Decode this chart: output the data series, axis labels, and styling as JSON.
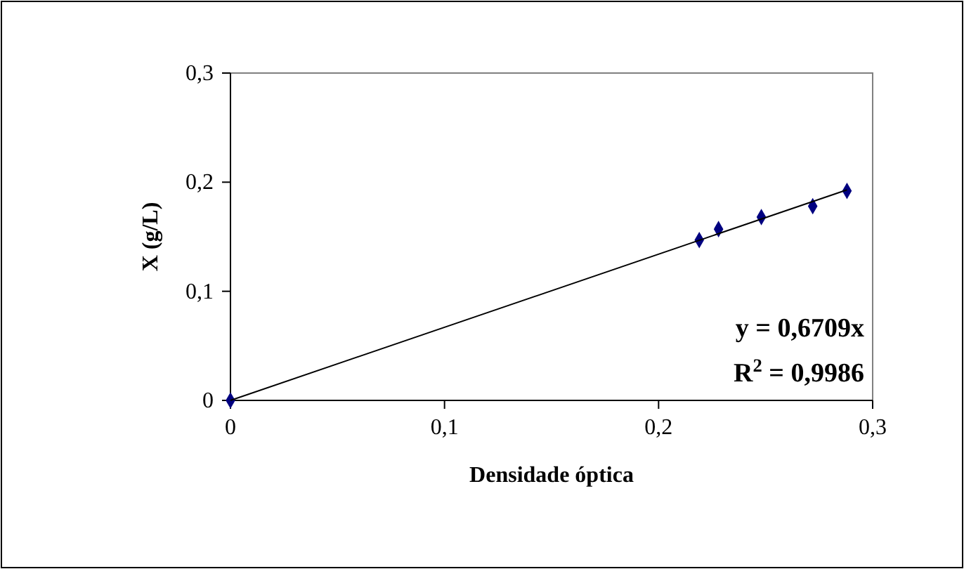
{
  "chart_data": {
    "type": "scatter",
    "xlabel": "Densidade óptica",
    "ylabel": "X (g/L)",
    "xlim": [
      0,
      0.3
    ],
    "ylim": [
      0,
      0.3
    ],
    "xticks": [
      {
        "value": 0,
        "label": "0"
      },
      {
        "value": 0.1,
        "label": "0,1"
      },
      {
        "value": 0.2,
        "label": "0,2"
      },
      {
        "value": 0.3,
        "label": "0,3"
      }
    ],
    "yticks": [
      {
        "value": 0,
        "label": "0"
      },
      {
        "value": 0.1,
        "label": "0,1"
      },
      {
        "value": 0.2,
        "label": "0,2"
      },
      {
        "value": 0.3,
        "label": "0,3"
      }
    ],
    "grid": false,
    "series": [
      {
        "marker": "diamond",
        "color": "#000080",
        "x": [
          0,
          0.219,
          0.228,
          0.248,
          0.272,
          0.288
        ],
        "values": [
          0,
          0.147,
          0.157,
          0.168,
          0.178,
          0.192
        ]
      },
      {
        "type": "line",
        "color": "#000000",
        "x": [
          0,
          0.288
        ],
        "values": [
          0,
          0.193
        ]
      }
    ],
    "annotations": [
      "y = 0,6709x",
      "R$^{2}$ = 0,9986"
    ]
  }
}
